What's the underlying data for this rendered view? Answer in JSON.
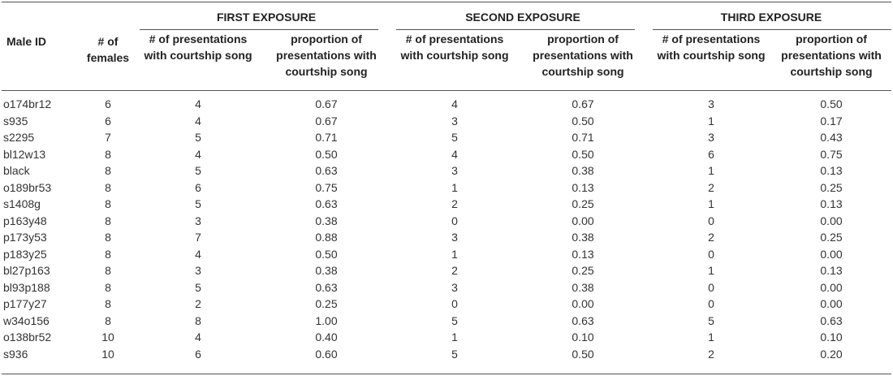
{
  "header": {
    "male_id": "Male ID",
    "num_females": "# of females",
    "groups": [
      "FIRST EXPOSURE",
      "SECOND EXPOSURE",
      "THIRD EXPOSURE"
    ],
    "sub_count": "# of presentations with courtship song",
    "sub_prop": "proportion of presentations with courtship song"
  },
  "rows": [
    [
      "o174br12",
      "6",
      "4",
      "0.67",
      "4",
      "0.67",
      "3",
      "0.50"
    ],
    [
      "s935",
      "6",
      "4",
      "0.67",
      "3",
      "0.50",
      "1",
      "0.17"
    ],
    [
      "s2295",
      "7",
      "5",
      "0.71",
      "5",
      "0.71",
      "3",
      "0.43"
    ],
    [
      "bl12w13",
      "8",
      "4",
      "0.50",
      "4",
      "0.50",
      "6",
      "0.75"
    ],
    [
      "black",
      "8",
      "5",
      "0.63",
      "3",
      "0.38",
      "1",
      "0.13"
    ],
    [
      "o189br53",
      "8",
      "6",
      "0.75",
      "1",
      "0.13",
      "2",
      "0.25"
    ],
    [
      "s1408g",
      "8",
      "5",
      "0.63",
      "2",
      "0.25",
      "1",
      "0.13"
    ],
    [
      "p163y48",
      "8",
      "3",
      "0.38",
      "0",
      "0.00",
      "0",
      "0.00"
    ],
    [
      "p173y53",
      "8",
      "7",
      "0.88",
      "3",
      "0.38",
      "2",
      "0.25"
    ],
    [
      "p183y25",
      "8",
      "4",
      "0.50",
      "1",
      "0.13",
      "0",
      "0.00"
    ],
    [
      "bl27p163",
      "8",
      "3",
      "0.38",
      "2",
      "0.25",
      "1",
      "0.13"
    ],
    [
      "bl93p188",
      "8",
      "5",
      "0.63",
      "3",
      "0.38",
      "0",
      "0.00"
    ],
    [
      "p177y27",
      "8",
      "2",
      "0.25",
      "0",
      "0.00",
      "0",
      "0.00"
    ],
    [
      "w34o156",
      "8",
      "8",
      "1.00",
      "5",
      "0.63",
      "5",
      "0.63"
    ],
    [
      "o138br52",
      "10",
      "4",
      "0.40",
      "1",
      "0.10",
      "1",
      "0.10"
    ],
    [
      "s936",
      "10",
      "6",
      "0.60",
      "5",
      "0.50",
      "2",
      "0.20"
    ]
  ]
}
